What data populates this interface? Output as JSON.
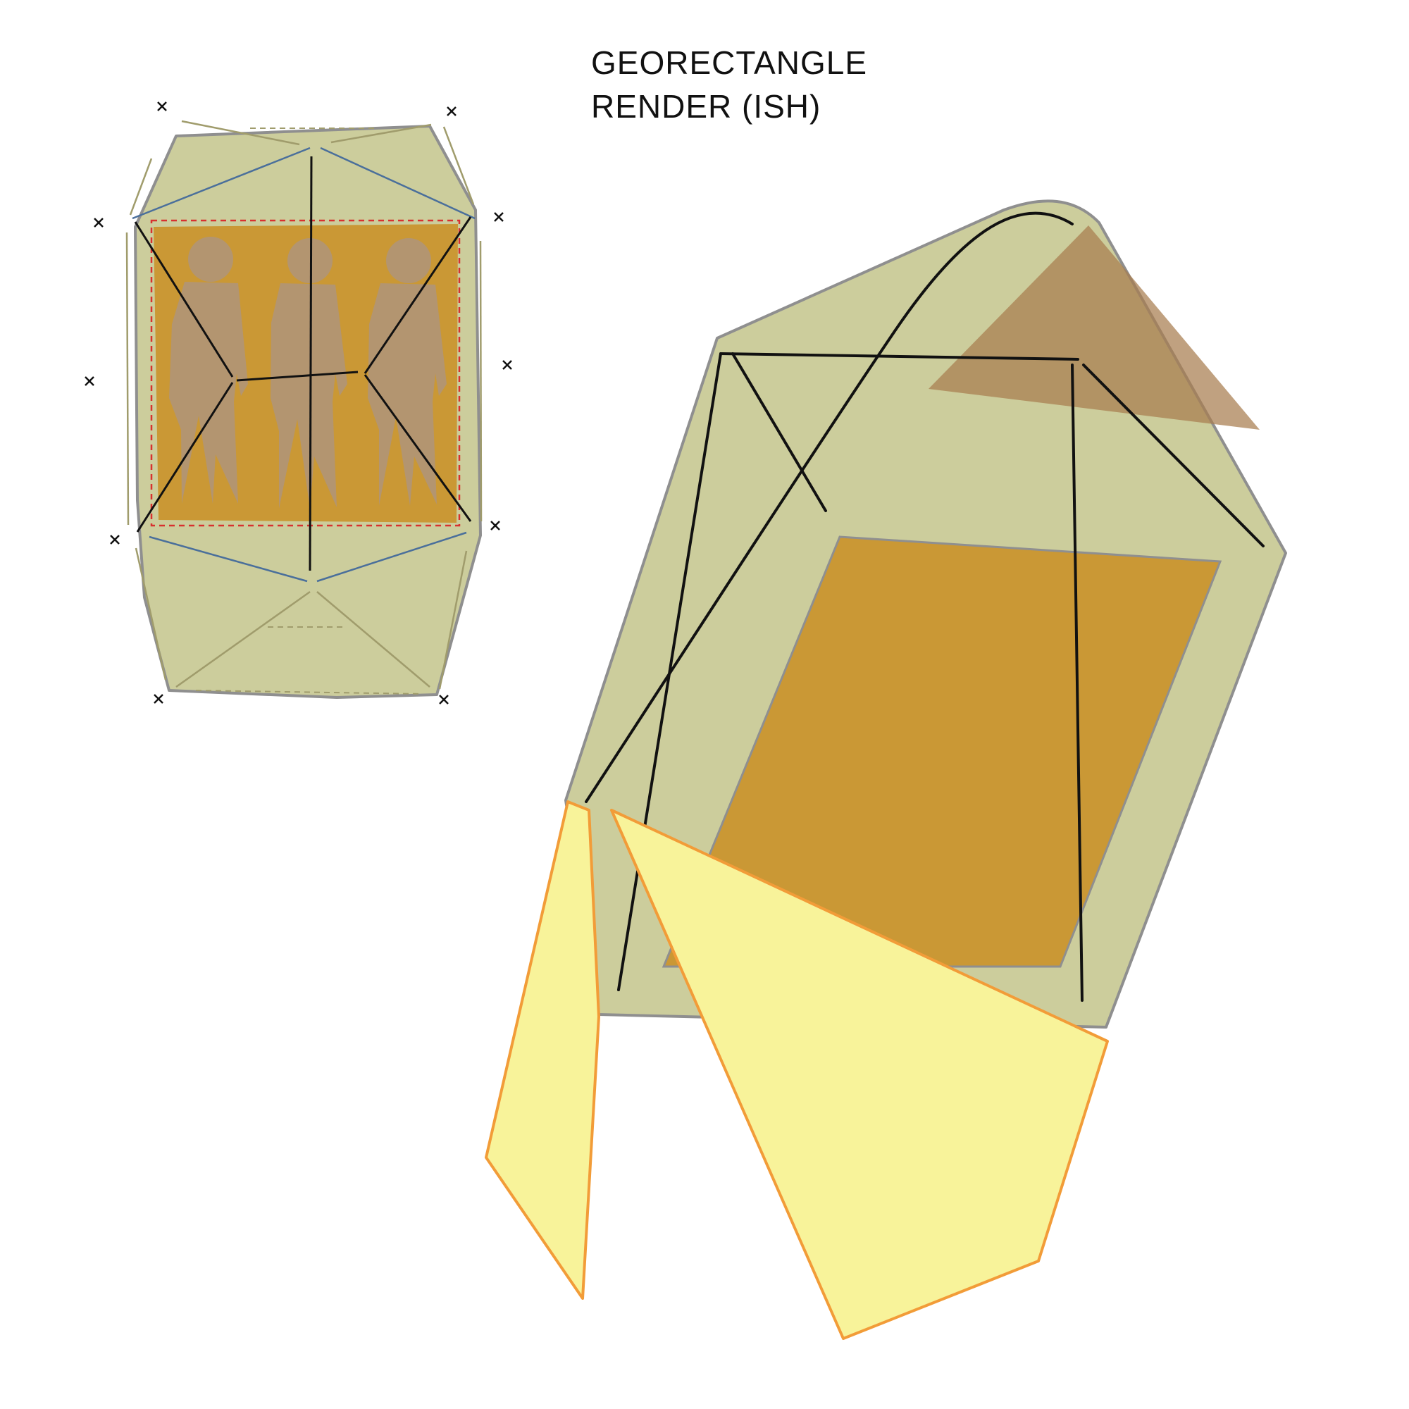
{
  "title": {
    "line1": "GEORECTANGLE",
    "line2": "RENDER (ISH)"
  },
  "colors": {
    "background": "#ffffff",
    "panel_fill": "#cccd9c",
    "panel_stroke": "#8f8f8f",
    "image_fill": "#ca9835",
    "figure_fill": "#b39570",
    "brown_triangle": "#a77d4f",
    "yellow_fill": "#f8f39a",
    "orange_stroke": "#f29c38",
    "blue_line": "#4a6f9b",
    "olive_line": "#a09c6c",
    "dashed_red": "#d8312f",
    "ink": "#111111"
  },
  "icons": {
    "corner_marker": "cross-mark-icon",
    "person": "person-silhouette-icon"
  }
}
